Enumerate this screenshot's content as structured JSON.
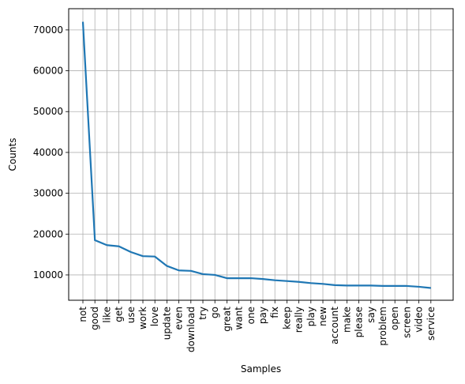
{
  "chart_data": {
    "type": "line",
    "title": "",
    "xlabel": "Samples",
    "ylabel": "Counts",
    "grid": true,
    "categories": [
      "not",
      "good",
      "like",
      "get",
      "use",
      "work",
      "love",
      "update",
      "even",
      "download",
      "try",
      "go",
      "great",
      "want",
      "one",
      "pay",
      "fix",
      "keep",
      "really",
      "play",
      "new",
      "account",
      "make",
      "please",
      "say",
      "problem",
      "open",
      "screen",
      "video",
      "service"
    ],
    "series": [
      {
        "values": [
          72000,
          18500,
          17300,
          17000,
          15600,
          14600,
          14500,
          12200,
          11100,
          11000,
          10200,
          10000,
          9200,
          9200,
          9200,
          9000,
          8700,
          8500,
          8300,
          8000,
          7800,
          7500,
          7400,
          7400,
          7400,
          7300,
          7300,
          7300,
          7100,
          6800
        ]
      }
    ],
    "yticks": [
      10000,
      20000,
      30000,
      40000,
      50000,
      60000,
      70000
    ],
    "ylim": [
      3800,
      75200
    ],
    "colors": {
      "line": "#1f77b4",
      "grid": "#b0b0b0",
      "axis": "#000000"
    }
  }
}
